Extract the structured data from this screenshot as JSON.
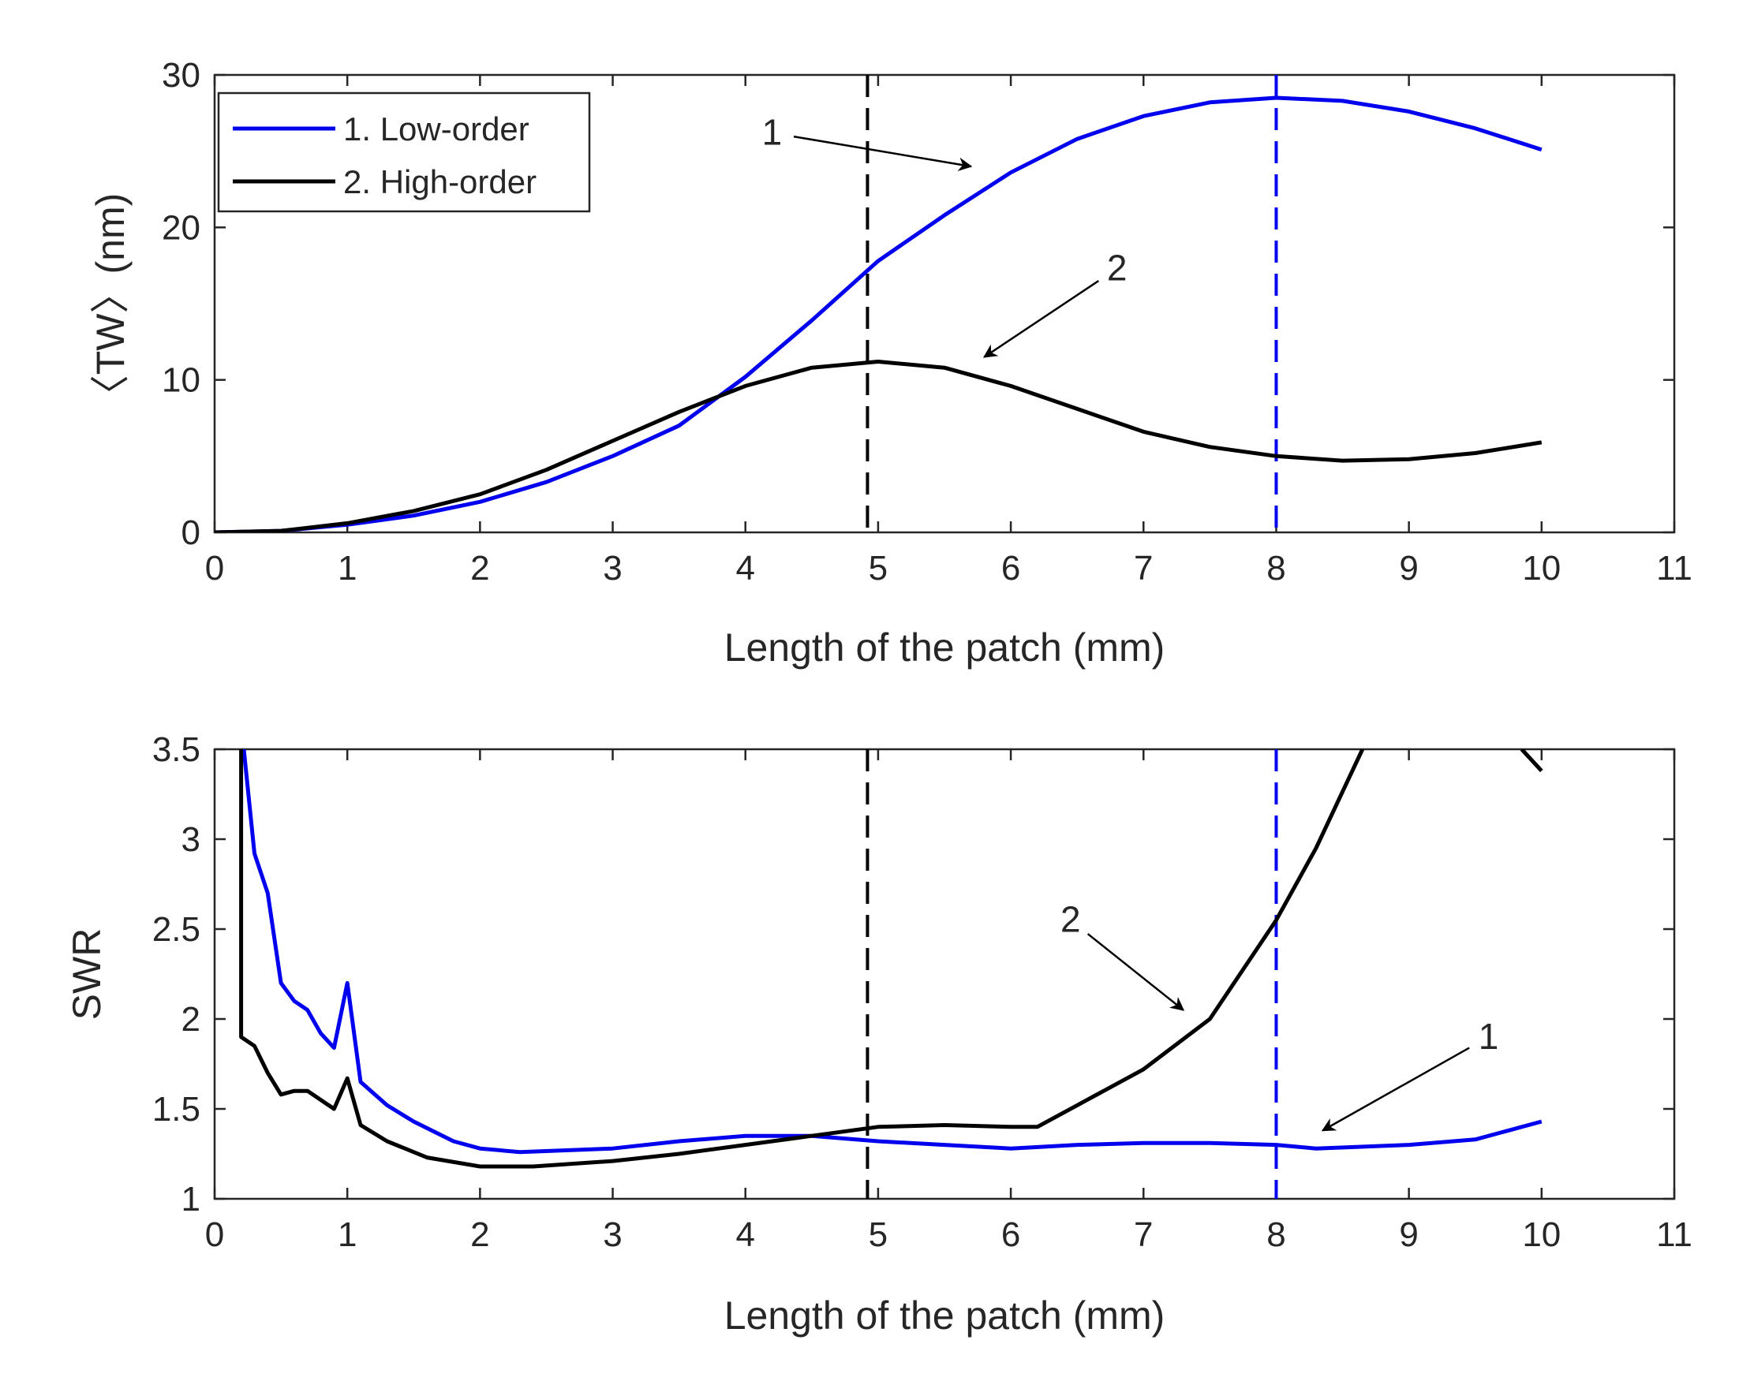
{
  "chart_data": [
    {
      "type": "line",
      "title": "",
      "xlabel": "Length of the patch (mm)",
      "ylabel": "〈TW〉(nm)",
      "xlim": [
        0,
        11
      ],
      "ylim": [
        0,
        30
      ],
      "xticks": [
        0,
        1,
        2,
        3,
        4,
        5,
        6,
        7,
        8,
        9,
        10,
        11
      ],
      "yticks": [
        0,
        10,
        20,
        30
      ],
      "grid": false,
      "legend_position": "top-left",
      "legend": [
        "1. Low-order",
        "2. High-order"
      ],
      "series": [
        {
          "name": "1. Low-order",
          "color": "#0000ee",
          "x": [
            0,
            0.5,
            1,
            1.5,
            2,
            2.5,
            3,
            3.5,
            4,
            4.5,
            5,
            5.5,
            6,
            6.5,
            7,
            7.5,
            8,
            8.5,
            9,
            9.5,
            10
          ],
          "y": [
            0,
            0.1,
            0.5,
            1.1,
            2.0,
            3.3,
            5.0,
            7.0,
            10.2,
            13.9,
            17.8,
            20.8,
            23.6,
            25.8,
            27.3,
            28.2,
            28.5,
            28.3,
            27.6,
            26.5,
            25.1
          ]
        },
        {
          "name": "2. High-order",
          "color": "#000000",
          "x": [
            0,
            0.5,
            1,
            1.5,
            2,
            2.5,
            3,
            3.5,
            4,
            4.5,
            5,
            5.5,
            6,
            6.5,
            7,
            7.5,
            8,
            8.5,
            9,
            9.5,
            10
          ],
          "y": [
            0,
            0.1,
            0.6,
            1.4,
            2.5,
            4.1,
            6.0,
            7.9,
            9.6,
            10.8,
            11.2,
            10.8,
            9.6,
            8.1,
            6.6,
            5.6,
            5.0,
            4.7,
            4.8,
            5.2,
            5.9
          ]
        }
      ],
      "reference_lines": [
        {
          "x": 4.92,
          "color": "#000000",
          "style": "dashed"
        },
        {
          "x": 8.0,
          "color": "#0000ee",
          "style": "dashed"
        }
      ],
      "annotations": [
        {
          "text": "1",
          "text_at": [
            4.2,
            26.2
          ],
          "arrow_to": [
            5.7,
            24.0
          ]
        },
        {
          "text": "2",
          "text_at": [
            6.8,
            17.3
          ],
          "arrow_to": [
            5.8,
            11.5
          ]
        }
      ]
    },
    {
      "type": "line",
      "title": "",
      "xlabel": "Length of the patch (mm)",
      "ylabel": "SWR",
      "xlim": [
        0,
        11
      ],
      "ylim": [
        1,
        3.5
      ],
      "xticks": [
        0,
        1,
        2,
        3,
        4,
        5,
        6,
        7,
        8,
        9,
        10,
        11
      ],
      "yticks": [
        1,
        1.5,
        2,
        2.5,
        3,
        3.5
      ],
      "ytick_labels": [
        "1",
        "1.5",
        "2",
        "2.5",
        "3",
        "3.5"
      ],
      "grid": false,
      "series": [
        {
          "name": "1. Low-order",
          "color": "#0000ee",
          "x": [
            0.22,
            0.3,
            0.4,
            0.5,
            0.6,
            0.7,
            0.8,
            0.9,
            1.0,
            1.1,
            1.3,
            1.5,
            1.8,
            2.0,
            2.3,
            3.0,
            3.5,
            4.0,
            4.5,
            5.0,
            5.5,
            6.0,
            6.5,
            7.0,
            7.5,
            8.0,
            8.3,
            9.0,
            9.5,
            10.0
          ],
          "y": [
            3.5,
            2.92,
            2.7,
            2.2,
            2.1,
            2.05,
            1.92,
            1.84,
            2.2,
            1.65,
            1.52,
            1.43,
            1.32,
            1.28,
            1.26,
            1.28,
            1.32,
            1.35,
            1.35,
            1.32,
            1.3,
            1.28,
            1.3,
            1.31,
            1.31,
            1.3,
            1.28,
            1.3,
            1.33,
            1.43
          ]
        },
        {
          "name": "2. High-order",
          "color": "#000000",
          "x": [
            0.2,
            0.2,
            0.3,
            0.4,
            0.5,
            0.6,
            0.7,
            0.8,
            0.9,
            1.0,
            1.1,
            1.3,
            1.6,
            2.0,
            2.4,
            3.0,
            3.5,
            4.0,
            4.5,
            5.0,
            5.5,
            6.0,
            6.2,
            6.5,
            7.0,
            7.5,
            8.0,
            8.3,
            8.65
          ],
          "y": [
            3.5,
            1.9,
            1.85,
            1.7,
            1.58,
            1.6,
            1.6,
            1.55,
            1.5,
            1.67,
            1.41,
            1.32,
            1.23,
            1.18,
            1.18,
            1.21,
            1.25,
            1.3,
            1.35,
            1.4,
            1.41,
            1.4,
            1.4,
            1.52,
            1.72,
            2.0,
            2.55,
            2.95,
            3.5
          ]
        },
        {
          "name": "2. High-order (tail)",
          "color": "#000000",
          "x": [
            9.85,
            10.0
          ],
          "y": [
            3.5,
            3.38
          ]
        }
      ],
      "reference_lines": [
        {
          "x": 4.92,
          "color": "#000000",
          "style": "dashed"
        },
        {
          "x": 8.0,
          "color": "#0000ee",
          "style": "dashed"
        }
      ],
      "annotations": [
        {
          "text": "2",
          "text_at": [
            6.45,
            2.55
          ],
          "arrow_to": [
            7.3,
            2.05
          ]
        },
        {
          "text": "1",
          "text_at": [
            9.6,
            1.9
          ],
          "arrow_to": [
            8.35,
            1.38
          ]
        }
      ]
    }
  ]
}
